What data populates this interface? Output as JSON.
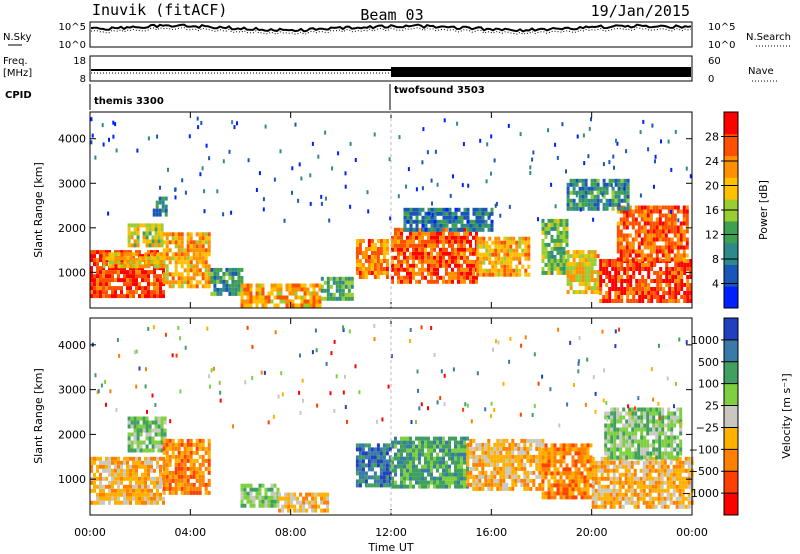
{
  "header": {
    "station": "Inuvik (fitACF)",
    "beam": "Beam 03",
    "date": "19/Jan/2015"
  },
  "top_panels": {
    "nsky_label": "N.Sky",
    "nsky_ticks": [
      "10^5",
      "10^0"
    ],
    "nsearch_label": "N.Search",
    "nsearch_ticks": [
      "10^5",
      "10^0"
    ],
    "freq_label": "Freq.",
    "freq_unit": "[MHz]",
    "freq_ticks": [
      "18",
      "8"
    ],
    "nave_label": "Nave",
    "nave_ticks": [
      "60",
      "0"
    ],
    "cpid_label": "CPID",
    "cpid_segments": [
      {
        "label": "themis 3300",
        "start_hour": 0
      },
      {
        "label": "twofsound 3503",
        "start_hour": 12
      }
    ]
  },
  "chart_data": [
    {
      "type": "heatmap",
      "name": "power",
      "xlabel": "",
      "ylabel": "Slant Range [km]",
      "xlim": [
        0,
        24
      ],
      "ylim": [
        200,
        4600
      ],
      "yticks": [
        1000,
        2000,
        3000,
        4000
      ],
      "colorbar": {
        "label": "Power [dB]",
        "ticks": [
          4,
          8,
          12,
          16,
          20,
          24,
          28
        ],
        "range": [
          0,
          32
        ],
        "colors": [
          "#0020ff",
          "#1a55b8",
          "#2e8a8a",
          "#3fa050",
          "#9acd32",
          "#ffc000",
          "#ff9000",
          "#ff5000",
          "#ff0000"
        ]
      },
      "bands": [
        {
          "x": [
            0.0,
            2.9
          ],
          "y": [
            500,
            1500
          ],
          "level": 28
        },
        {
          "x": [
            0.5,
            2.9
          ],
          "y": [
            1150,
            1450
          ],
          "level": 20
        },
        {
          "x": [
            2.9,
            4.8
          ],
          "y": [
            700,
            1900
          ],
          "level": 22
        },
        {
          "x": [
            1.5,
            2.9
          ],
          "y": [
            1600,
            2100
          ],
          "level": 18
        },
        {
          "x": [
            2.5,
            3.0
          ],
          "y": [
            2200,
            2700
          ],
          "level": 10
        },
        {
          "x": [
            4.8,
            6.0
          ],
          "y": [
            550,
            1100
          ],
          "level": 10
        },
        {
          "x": [
            6.0,
            9.2
          ],
          "y": [
            300,
            750
          ],
          "level": 22
        },
        {
          "x": [
            9.2,
            10.5
          ],
          "y": [
            400,
            900
          ],
          "level": 12
        },
        {
          "x": [
            10.6,
            11.9
          ],
          "y": [
            900,
            1750
          ],
          "level": 24
        },
        {
          "x": [
            12.0,
            15.4
          ],
          "y": [
            750,
            2000
          ],
          "level": 26
        },
        {
          "x": [
            15.4,
            17.5
          ],
          "y": [
            950,
            1800
          ],
          "level": 22
        },
        {
          "x": [
            12.5,
            16.0
          ],
          "y": [
            2000,
            2450
          ],
          "level": 8
        },
        {
          "x": [
            18.0,
            19.0
          ],
          "y": [
            1000,
            2200
          ],
          "level": 14
        },
        {
          "x": [
            19.0,
            20.3
          ],
          "y": [
            600,
            1500
          ],
          "level": 20
        },
        {
          "x": [
            20.3,
            24.0
          ],
          "y": [
            400,
            1300
          ],
          "level": 28
        },
        {
          "x": [
            21.0,
            23.8
          ],
          "y": [
            1300,
            2500
          ],
          "level": 26
        },
        {
          "x": [
            19.0,
            21.5
          ],
          "y": [
            2400,
            3100
          ],
          "level": 10
        }
      ]
    },
    {
      "type": "heatmap",
      "name": "velocity",
      "xlabel": "Time UT",
      "ylabel": "Slant Range [km]",
      "xlim": [
        0,
        24
      ],
      "ylim": [
        200,
        4600
      ],
      "xticks": [
        "00:00",
        "04:00",
        "08:00",
        "12:00",
        "16:00",
        "20:00",
        "00:00"
      ],
      "xtick_hours": [
        0,
        4,
        8,
        12,
        16,
        20,
        24
      ],
      "yticks": [
        1000,
        2000,
        3000,
        4000
      ],
      "colorbar": {
        "label": "Velocity [m s⁻¹]",
        "ticks": [
          "1000",
          "500",
          "100",
          "25",
          "−25",
          "−100",
          "−500",
          "−1000"
        ],
        "colors": [
          "#2040c0",
          "#3a7aa8",
          "#3fa060",
          "#7ed040",
          "#c8c8c0",
          "#ffb000",
          "#ff8000",
          "#ff4000",
          "#ff0000"
        ]
      },
      "bands": [
        {
          "x": [
            0.0,
            2.9
          ],
          "y": [
            500,
            1500
          ],
          "code": "-100"
        },
        {
          "x": [
            1.5,
            3.0
          ],
          "y": [
            1600,
            2400
          ],
          "code": "25"
        },
        {
          "x": [
            2.9,
            4.8
          ],
          "y": [
            700,
            1900
          ],
          "code": "-500"
        },
        {
          "x": [
            6.0,
            7.5
          ],
          "y": [
            400,
            900
          ],
          "code": "25"
        },
        {
          "x": [
            7.5,
            9.5
          ],
          "y": [
            300,
            700
          ],
          "code": "-100"
        },
        {
          "x": [
            10.6,
            12.0
          ],
          "y": [
            900,
            1800
          ],
          "code": "500"
        },
        {
          "x": [
            12.0,
            15.0
          ],
          "y": [
            800,
            1950
          ],
          "code": "100"
        },
        {
          "x": [
            15.0,
            18.0
          ],
          "y": [
            800,
            1900
          ],
          "code": "-100"
        },
        {
          "x": [
            18.0,
            20.0
          ],
          "y": [
            600,
            1800
          ],
          "code": "-500"
        },
        {
          "x": [
            20.0,
            24.0
          ],
          "y": [
            400,
            1500
          ],
          "code": "-100"
        },
        {
          "x": [
            20.5,
            23.5
          ],
          "y": [
            1500,
            2600
          ],
          "code": "25"
        }
      ]
    }
  ]
}
